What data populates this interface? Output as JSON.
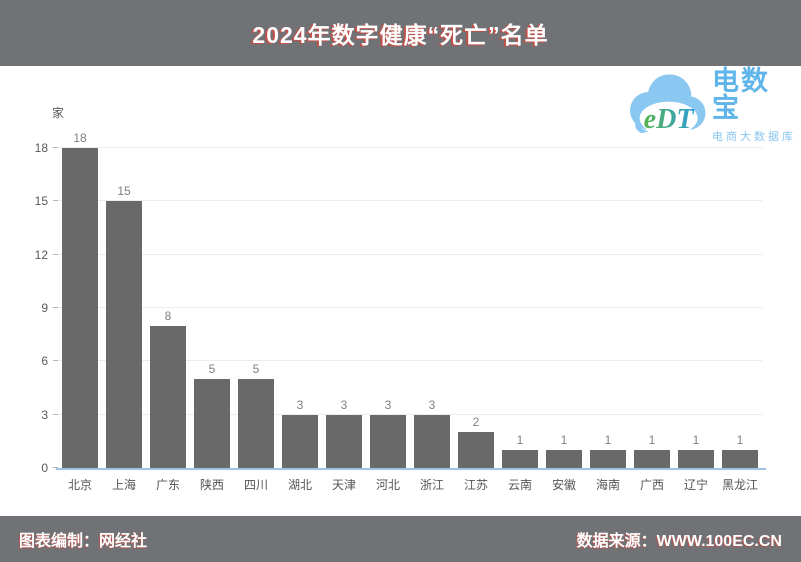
{
  "header": {
    "title": "2024年数字健康“死亡”名单"
  },
  "logo": {
    "edt": "eDT",
    "name": "电数宝",
    "subtitle": "电商大数据库"
  },
  "footer": {
    "left": "图表编制：网经社",
    "right": "数据来源：WWW.100EC.CN"
  },
  "chart_data": {
    "type": "bar",
    "title": "2024年数字健康“死亡”名单",
    "unit_label": "家",
    "categories": [
      "北京",
      "上海",
      "广东",
      "陕西",
      "四川",
      "湖北",
      "天津",
      "河北",
      "浙江",
      "江苏",
      "云南",
      "安徽",
      "海南",
      "广西",
      "辽宁",
      "黑龙江"
    ],
    "values": [
      18,
      15,
      8,
      5,
      5,
      3,
      3,
      3,
      3,
      2,
      1,
      1,
      1,
      1,
      1,
      1
    ],
    "xlabel": "",
    "ylabel": "家",
    "yticks": [
      0,
      3,
      6,
      9,
      12,
      15,
      18
    ],
    "ylim": [
      0,
      18
    ],
    "grid": true,
    "legend": false,
    "bar_color": "#696969",
    "axis_color": "#9cc2e5",
    "gridline_color": "#ececec",
    "value_label_color": "#7f7f7f"
  }
}
